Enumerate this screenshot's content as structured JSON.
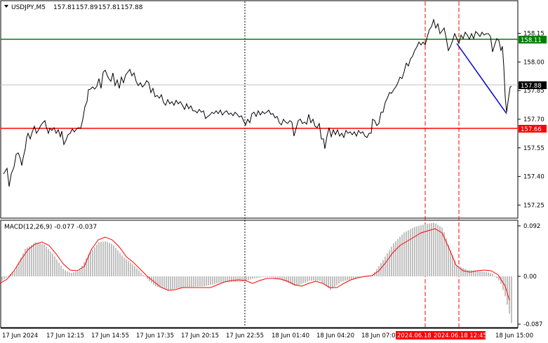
{
  "header": {
    "symbol": "USDJPY,M5",
    "open": "157.81",
    "high": "157.89",
    "low": "157.81",
    "close": "157.88"
  },
  "price_panel": {
    "ticks": [
      {
        "label": "158.15",
        "value": 158.15
      },
      {
        "label": "158.00",
        "value": 158.0
      },
      {
        "label": "157.85",
        "value": 157.85
      },
      {
        "label": "157.70",
        "value": 157.7
      },
      {
        "label": "157.55",
        "value": 157.55
      },
      {
        "label": "157.40",
        "value": 157.4
      },
      {
        "label": "157.25",
        "value": 157.25
      }
    ],
    "resistance": {
      "label": "158.11",
      "value": 158.11,
      "color": "#008000"
    },
    "support": {
      "label": "157.66",
      "value": 157.66,
      "color": "#ff0000"
    },
    "current": {
      "label": "157.88",
      "value": 157.88,
      "color": "#000000"
    }
  },
  "macd_panel": {
    "title": "MACD(12,26,9) -0.077 -0.037",
    "ticks": [
      {
        "label": "0.092",
        "value": 0.092
      },
      {
        "label": "0.00",
        "value": 0.0
      },
      {
        "label": "-0.087",
        "value": -0.087
      }
    ]
  },
  "time_axis": {
    "labels": [
      "17 Jun 2024",
      "17 Jun 12:15",
      "17 Jun 14:55",
      "17 Jun 17:35",
      "17 Jun 20:15",
      "17 Jun 22:55",
      "18 Jun 01:40",
      "18 Jun 04:20",
      "18 Jun 07:00",
      "2024.06.18",
      "2024.06.18 12:45",
      "18 Jun 15:00"
    ]
  },
  "markers": {
    "vline_color": "#ff0000",
    "session_color": "#000000",
    "trend_color": "#0000cc"
  },
  "colors": {
    "price_line": "#000000",
    "histogram": "#c0c0c0",
    "signal": "#ff0000",
    "grid": "#c8c8c8"
  }
}
